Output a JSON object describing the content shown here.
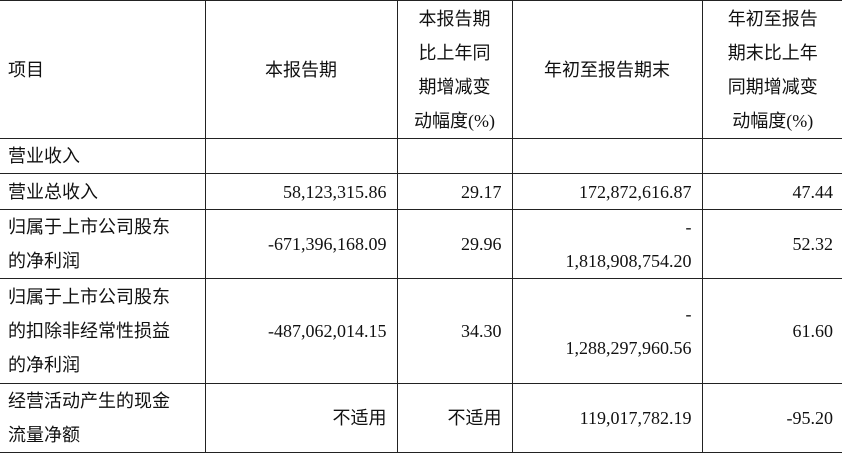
{
  "header": {
    "item": "项目",
    "current_period": "本报告期",
    "current_change": [
      "本报告期",
      "比上年同",
      "期增减变",
      "动幅度(%)"
    ],
    "ytd": "年初至报告期末",
    "ytd_change": [
      "年初至报告",
      "期末比上年",
      "同期增减变",
      "动幅度(%)"
    ]
  },
  "rows": [
    {
      "item": [
        "营业收入"
      ],
      "current": "",
      "current_change": "",
      "ytd": [],
      "ytd_change": ""
    },
    {
      "item": [
        "营业总收入"
      ],
      "current": "58,123,315.86",
      "current_change": "29.17",
      "ytd": [
        "172,872,616.87"
      ],
      "ytd_change": "47.44"
    },
    {
      "item": [
        "归属于上市公司股东",
        "的净利润"
      ],
      "current": "-671,396,168.09",
      "current_change": "29.96",
      "ytd": [
        "-",
        "1,818,908,754.20"
      ],
      "ytd_change": "52.32"
    },
    {
      "item": [
        "归属于上市公司股东",
        "的扣除非经常性损益",
        "的净利润"
      ],
      "current": "-487,062,014.15",
      "current_change": "34.30",
      "ytd": [
        "-",
        "1,288,297,960.56"
      ],
      "ytd_change": "61.60"
    },
    {
      "item": [
        "经营活动产生的现金",
        "流量净额"
      ],
      "current": "不适用",
      "current_change": "不适用",
      "ytd": [
        "119,017,782.19"
      ],
      "ytd_change": "-95.20"
    }
  ]
}
